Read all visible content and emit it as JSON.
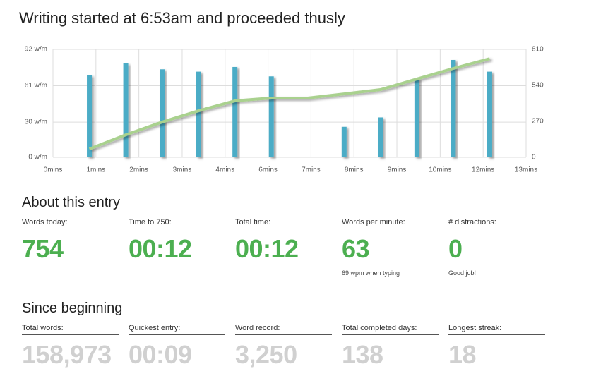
{
  "chart_data": {
    "type": "bar",
    "title": "Writing started at 6:53am and proceeded thusly",
    "xlim": [
      0,
      13
    ],
    "xticks": [
      {
        "value": 0,
        "label": "0mins"
      },
      {
        "value": 1.18,
        "label": "1mins"
      },
      {
        "value": 2.36,
        "label": "2mins"
      },
      {
        "value": 3.55,
        "label": "3mins"
      },
      {
        "value": 4.73,
        "label": "4mins"
      },
      {
        "value": 5.91,
        "label": "6mins"
      },
      {
        "value": 7.09,
        "label": "7mins"
      },
      {
        "value": 8.27,
        "label": "8mins"
      },
      {
        "value": 9.45,
        "label": "9mins"
      },
      {
        "value": 10.64,
        "label": "10mins"
      },
      {
        "value": 11.82,
        "label": "12mins"
      },
      {
        "value": 13,
        "label": "13mins"
      }
    ],
    "ylim": [
      0,
      92
    ],
    "yticks": [
      {
        "value": 0,
        "label": "0 w/m"
      },
      {
        "value": 30,
        "label": "30 w/m"
      },
      {
        "value": 61,
        "label": "61 w/m"
      },
      {
        "value": 92,
        "label": "92 w/m"
      }
    ],
    "y2lim": [
      0,
      810
    ],
    "y2ticks": [
      0,
      270,
      540,
      810
    ],
    "grid": true,
    "series": [
      {
        "type": "bar",
        "color": "#4bacc6",
        "x": [
          1,
          2,
          3,
          4,
          5,
          6,
          8,
          9,
          10,
          11,
          12
        ],
        "values": [
          70,
          80,
          75,
          73,
          77,
          69,
          26,
          34,
          67,
          83,
          73
        ]
      },
      {
        "type": "line",
        "axis": "y2",
        "color": "#a9d18e",
        "x": [
          1,
          2,
          3,
          4,
          5,
          6,
          7,
          8,
          9,
          10,
          11,
          12
        ],
        "values": [
          63,
          169,
          265,
          349,
          424,
          445,
          445,
          476,
          508,
          588,
          667,
          740
        ]
      }
    ]
  },
  "about": {
    "title": "About this entry",
    "items": [
      {
        "label": "Words today:",
        "value": "754"
      },
      {
        "label": "Time to 750:",
        "value": "00:12"
      },
      {
        "label": "Total time:",
        "value": "00:12"
      },
      {
        "label": "Words per minute:",
        "value": "63",
        "note": "69 wpm when typing"
      },
      {
        "label": "# distractions:",
        "value": "0",
        "note": "Good job!"
      }
    ]
  },
  "since": {
    "title": "Since beginning",
    "items": [
      {
        "label": "Total words:",
        "value": "158,973"
      },
      {
        "label": "Quickest entry:",
        "value": "00:09"
      },
      {
        "label": "Word record:",
        "value": "3,250"
      },
      {
        "label": "Total completed days:",
        "value": "138"
      },
      {
        "label": "Longest streak:",
        "value": "18"
      }
    ]
  }
}
